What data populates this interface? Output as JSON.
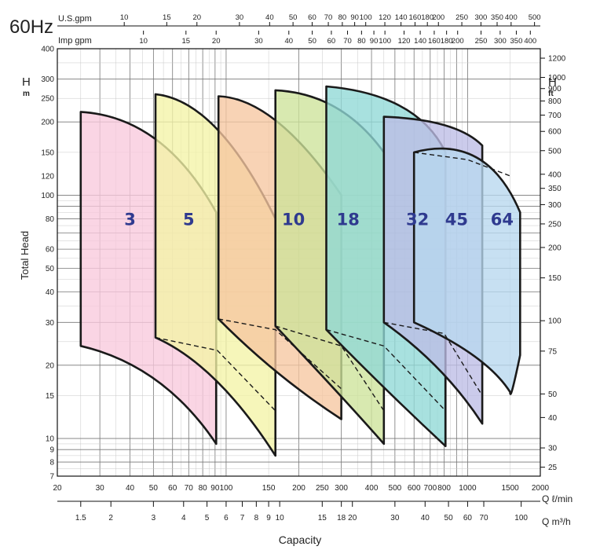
{
  "title_freq": "60Hz",
  "top_axes": {
    "us_label": "U.S.gpm",
    "imp_label": "Imp gpm",
    "us_ticks": [
      "10",
      "15",
      "20",
      "30",
      "40",
      "50",
      "60",
      "70",
      "80",
      "90",
      "100",
      "120",
      "140",
      "160",
      "180",
      "200",
      "250",
      "300",
      "350",
      "400",
      "500"
    ],
    "imp_ticks": [
      "10",
      "15",
      "20",
      "30",
      "40",
      "50",
      "60",
      "70",
      "80",
      "90",
      "100",
      "120",
      "140",
      "160",
      "180",
      "200",
      "250",
      "300",
      "350",
      "400"
    ]
  },
  "left_axis": {
    "symbol": "H",
    "unit": "m",
    "label": "Total Head",
    "ticks": [
      "7",
      "8",
      "9",
      "10",
      "15",
      "20",
      "30",
      "40",
      "50",
      "60",
      "80",
      "100",
      "120",
      "150",
      "200",
      "250",
      "300",
      "400"
    ]
  },
  "right_axis": {
    "symbol": "H",
    "unit": "ft",
    "ticks": [
      "25",
      "30",
      "40",
      "50",
      "75",
      "100",
      "150",
      "200",
      "250",
      "300",
      "350",
      "400",
      "500",
      "600",
      "700",
      "800",
      "900",
      "1000",
      "1200"
    ]
  },
  "bottom_axes": {
    "lmin_label": "Q ℓ/min",
    "m3h_label": "Q m³/h",
    "lmin_ticks": [
      "20",
      "30",
      "40",
      "50",
      "60",
      "70",
      "80",
      "90",
      "100",
      "150",
      "200",
      "250",
      "300",
      "400",
      "500",
      "600",
      "700",
      "800",
      "1000",
      "1500",
      "2000"
    ],
    "m3h_ticks": [
      "1.5",
      "2",
      "3",
      "4",
      "5",
      "6",
      "7",
      "8",
      "9",
      "10",
      "15",
      "18",
      "20",
      "30",
      "40",
      "50",
      "60",
      "70",
      "100"
    ],
    "label": "Capacity"
  },
  "colors": {
    "3": "#f9c9dc",
    "5": "#f4f3a6",
    "10": "#f6c6a0",
    "18": "#cde39a",
    "32": "#90d9d6",
    "45": "#bdbde6",
    "64": "#b7d7ee",
    "outline": "#1a1a1a",
    "model_label": "#2f3a8f"
  },
  "chart_data": {
    "type": "area",
    "title": "60Hz",
    "xlabel": "Capacity",
    "ylabel": "Total Head",
    "x_scale": "log",
    "y_scale": "log",
    "xlim_lmin": [
      20,
      2000
    ],
    "ylim_m": [
      7,
      400
    ],
    "grid": true,
    "series": [
      {
        "name": "3",
        "points_lmin_m": [
          [
            25,
            220
          ],
          [
            55,
            195
          ],
          [
            91,
            85
          ],
          [
            91,
            9.5
          ],
          [
            55,
            22
          ],
          [
            25,
            24
          ]
        ]
      },
      {
        "name": "5",
        "points_lmin_m": [
          [
            51,
            260
          ],
          [
            92,
            228
          ],
          [
            160,
            80
          ],
          [
            160,
            8.5
          ],
          [
            92,
            21
          ],
          [
            51,
            26
          ]
        ]
      },
      {
        "name": "10",
        "points_lmin_m": [
          [
            93,
            255
          ],
          [
            160,
            240
          ],
          [
            300,
            100
          ],
          [
            300,
            12
          ],
          [
            160,
            21
          ],
          [
            93,
            31
          ]
        ]
      },
      {
        "name": "18",
        "points_lmin_m": [
          [
            160,
            270
          ],
          [
            300,
            250
          ],
          [
            450,
            150
          ],
          [
            450,
            9.5
          ],
          [
            300,
            19
          ],
          [
            160,
            29
          ]
        ]
      },
      {
        "name": "32",
        "points_lmin_m": [
          [
            260,
            280
          ],
          [
            600,
            240
          ],
          [
            810,
            150
          ],
          [
            810,
            9.3
          ],
          [
            450,
            21
          ],
          [
            260,
            28
          ]
        ]
      },
      {
        "name": "45",
        "points_lmin_m": [
          [
            450,
            210
          ],
          [
            800,
            200
          ],
          [
            1150,
            160
          ],
          [
            1150,
            11.5
          ],
          [
            800,
            24
          ],
          [
            450,
            30
          ]
        ]
      },
      {
        "name": "64",
        "points_lmin_m": [
          [
            600,
            150
          ],
          [
            1200,
            162
          ],
          [
            1650,
            85
          ],
          [
            1650,
            22
          ],
          [
            1500,
            15.5
          ],
          [
            1200,
            28
          ],
          [
            600,
            30
          ]
        ]
      }
    ],
    "labels": [
      "3",
      "5",
      "10",
      "18",
      "32",
      "45",
      "64"
    ]
  }
}
